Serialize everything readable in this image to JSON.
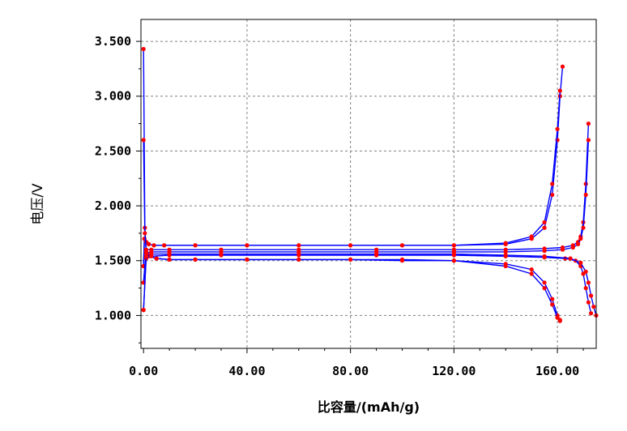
{
  "chart_data": {
    "type": "line",
    "title": "",
    "xlabel": "比容量/(mAh/g)",
    "ylabel": "电压/V",
    "xlim": [
      -1,
      175
    ],
    "ylim": [
      0.7,
      3.7
    ],
    "grid": true,
    "legend": "none",
    "x_ticks": [
      0,
      40,
      80,
      120,
      160
    ],
    "x_tick_labels": [
      "0.00",
      "40.00",
      "80.00",
      "120.00",
      "160.00"
    ],
    "y_ticks": [
      1.0,
      1.5,
      2.0,
      2.5,
      3.0,
      3.5
    ],
    "y_tick_labels": [
      "1.000",
      "1.500",
      "2.000",
      "2.500",
      "3.000",
      "3.500"
    ],
    "colors": {
      "line": "#0000ff",
      "marker": "#ff0000",
      "grid": "#808080"
    },
    "series": [
      {
        "role": "charge",
        "x": [
          0,
          0.3,
          1,
          2,
          4,
          8,
          20,
          40,
          60,
          80,
          100,
          120,
          140,
          150,
          155,
          158,
          160,
          161,
          162
        ],
        "y": [
          1.45,
          1.7,
          1.67,
          1.65,
          1.64,
          1.64,
          1.64,
          1.64,
          1.64,
          1.64,
          1.64,
          1.64,
          1.65,
          1.7,
          1.8,
          2.1,
          2.6,
          3.0,
          3.27
        ]
      },
      {
        "role": "charge",
        "x": [
          0,
          0.3,
          1,
          2,
          4,
          8,
          20,
          40,
          60,
          80,
          100,
          120,
          140,
          150,
          155,
          158,
          160,
          161
        ],
        "y": [
          1.45,
          1.7,
          1.67,
          1.65,
          1.64,
          1.64,
          1.64,
          1.64,
          1.64,
          1.64,
          1.64,
          1.64,
          1.66,
          1.72,
          1.85,
          2.2,
          2.7,
          3.05
        ]
      },
      {
        "role": "discharge",
        "x": [
          0,
          0.5,
          1,
          2,
          5,
          10,
          20,
          40,
          60,
          80,
          100,
          120,
          140,
          150,
          155,
          158,
          160,
          161
        ],
        "y": [
          3.43,
          1.8,
          1.6,
          1.55,
          1.52,
          1.51,
          1.51,
          1.51,
          1.51,
          1.51,
          1.51,
          1.5,
          1.47,
          1.42,
          1.3,
          1.15,
          1.0,
          0.96
        ]
      },
      {
        "role": "discharge",
        "x": [
          0,
          0.5,
          1,
          2,
          5,
          10,
          20,
          40,
          60,
          80,
          100,
          120,
          140,
          150,
          155,
          158,
          160,
          161
        ],
        "y": [
          2.6,
          1.75,
          1.58,
          1.54,
          1.52,
          1.51,
          1.51,
          1.51,
          1.51,
          1.51,
          1.5,
          1.5,
          1.45,
          1.38,
          1.25,
          1.1,
          0.98,
          0.95
        ]
      },
      {
        "role": "charge",
        "x": [
          0,
          1,
          3,
          10,
          30,
          60,
          90,
          120,
          140,
          155,
          162,
          166,
          168,
          169,
          170,
          171,
          172
        ],
        "y": [
          1.3,
          1.6,
          1.6,
          1.6,
          1.6,
          1.6,
          1.6,
          1.6,
          1.6,
          1.61,
          1.62,
          1.64,
          1.67,
          1.72,
          1.85,
          2.2,
          2.75
        ]
      },
      {
        "role": "charge",
        "x": [
          0,
          1,
          3,
          10,
          30,
          60,
          90,
          120,
          140,
          155,
          162,
          166,
          168,
          169,
          170,
          171,
          172
        ],
        "y": [
          1.3,
          1.57,
          1.58,
          1.58,
          1.58,
          1.58,
          1.58,
          1.58,
          1.58,
          1.59,
          1.6,
          1.62,
          1.65,
          1.7,
          1.8,
          2.1,
          2.6
        ]
      },
      {
        "role": "discharge",
        "x": [
          0,
          1,
          3,
          10,
          30,
          60,
          90,
          120,
          140,
          155,
          163,
          167,
          169,
          170,
          171,
          172,
          173
        ],
        "y": [
          1.05,
          1.52,
          1.54,
          1.55,
          1.55,
          1.55,
          1.55,
          1.55,
          1.54,
          1.53,
          1.52,
          1.5,
          1.45,
          1.38,
          1.25,
          1.12,
          1.02
        ]
      },
      {
        "role": "discharge",
        "x": [
          0,
          1,
          3,
          10,
          30,
          60,
          90,
          120,
          140,
          155,
          165,
          169,
          171,
          172,
          173,
          174,
          175
        ],
        "y": [
          1.05,
          1.54,
          1.56,
          1.56,
          1.56,
          1.56,
          1.56,
          1.56,
          1.55,
          1.54,
          1.52,
          1.48,
          1.4,
          1.3,
          1.18,
          1.08,
          1.0
        ]
      }
    ]
  }
}
